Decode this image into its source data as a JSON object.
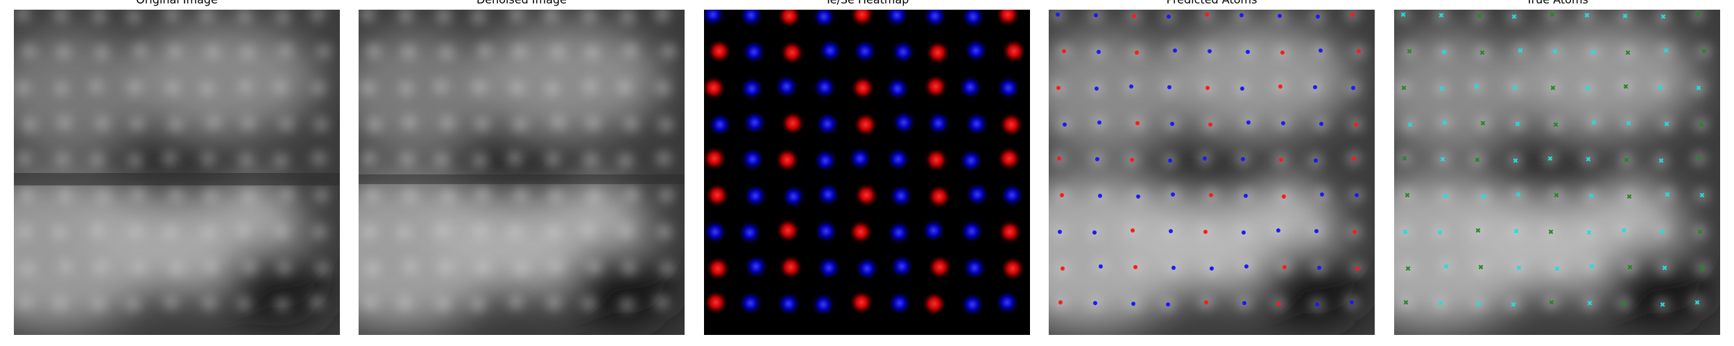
{
  "panels": [
    {
      "id": "original",
      "title": "Original Image"
    },
    {
      "id": "denoised",
      "title": "Denoised Image"
    },
    {
      "id": "heatmap",
      "title": "Te/Se Heatmap"
    },
    {
      "id": "predicted",
      "title": "Predicted Atoms"
    },
    {
      "id": "true",
      "title": "True Atoms"
    }
  ],
  "colors": {
    "te": "#ff1a1a",
    "se": "#1a1aff",
    "true_a": "#22dddd",
    "true_b": "#228822",
    "background": "#000000"
  }
}
